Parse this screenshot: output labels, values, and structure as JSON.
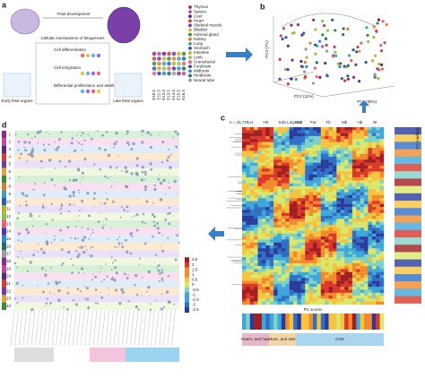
{
  "panels": {
    "a": {
      "label": "a",
      "title": "Fetal development",
      "mechanisms": "Cellular mechanisms of fetogenesis",
      "steps": [
        "Cell differentiation",
        "Cell emigration",
        "Differential proliferation and death"
      ],
      "early": "Early fetal organs",
      "late": "Late fetal organs",
      "organs": [
        "Thymus",
        "Spleen",
        "Liver",
        "Heart",
        "Skeletal muscle",
        "Bladder",
        "Adrenal gland",
        "Kidney",
        "Lung",
        "Stomach",
        "Intestine",
        "Limb",
        "Craniofacial",
        "Forebrain",
        "Midbrain",
        "Hindbrain",
        "Neural tube"
      ],
      "stages": [
        "E10.5",
        "E11.5",
        "E12.5",
        "E13.5",
        "E14.5",
        "E15.5",
        "E16.5"
      ]
    },
    "b": {
      "label": "b",
      "axes": [
        "PC1 (35%)",
        "PC2 (11%)",
        "PC3 (7%)"
      ]
    },
    "c": {
      "label": "c",
      "n": "n = 15,747",
      "columns": [
        "Lvr",
        "Hrt",
        "Kdn Lng Stm",
        "Lmb",
        "Fac",
        "Fb",
        "Mb",
        "Hb",
        "Nt"
      ],
      "side": "PC loadings",
      "scores": "PC scores",
      "groups": [
        "Haem. and hep.",
        "Musc. and skel.",
        "CNS"
      ]
    },
    "d": {
      "label": "d",
      "rows": [
        "1",
        "2",
        "3",
        "4",
        "5",
        "6",
        "7",
        "8",
        "9",
        "10",
        "11",
        "12",
        "13",
        "14",
        "15",
        "16",
        "17",
        "18",
        "19",
        "20",
        "21",
        "22",
        "23",
        "24"
      ],
      "colorbar": [
        "2.5",
        "2",
        "1.5",
        "1",
        "0.5",
        "0",
        "-0.5",
        "-1",
        "-1.5",
        "-2",
        "-2.5"
      ]
    }
  }
}
